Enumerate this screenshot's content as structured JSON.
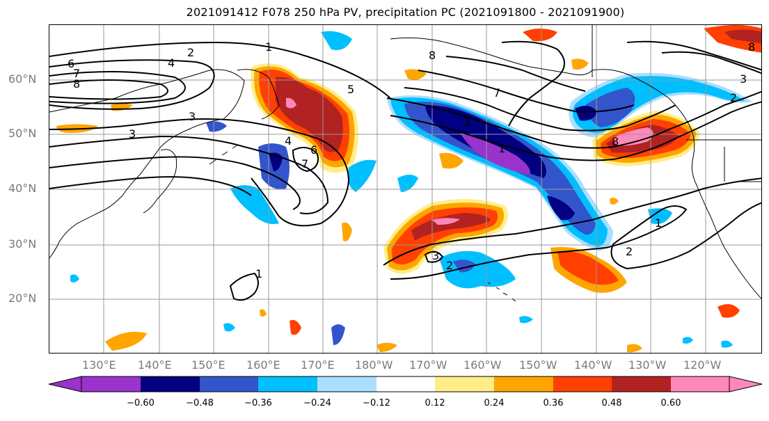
{
  "title": "2021091412 F078 250 hPa PV, precipitation PC (2021091800 - 2021091900)",
  "lat_labels": [
    "60°N",
    "50°N",
    "40°N",
    "30°N",
    "20°N"
  ],
  "lon_labels": [
    "130°E",
    "140°E",
    "150°E",
    "160°E",
    "170°E",
    "180°W",
    "170°W",
    "160°W",
    "150°W",
    "140°W",
    "130°W",
    "120°W"
  ],
  "contour_labels": [
    "2",
    "1",
    "6",
    "7",
    "8",
    "4",
    "3",
    "3",
    "5",
    "7",
    "8",
    "4",
    "6",
    "3",
    "1",
    "2",
    "3",
    "2",
    "1",
    "2",
    "8",
    "8",
    "3",
    "1",
    "7"
  ],
  "colorbar": {
    "tick_labels": [
      "−0.60",
      "−0.48",
      "−0.36",
      "−0.24",
      "−0.12",
      "0.12",
      "0.24",
      "0.36",
      "0.48",
      "0.60"
    ],
    "colors": [
      "#9933cc",
      "#000080",
      "#3355cc",
      "#00bfff",
      "#aadfff",
      "#ffffff",
      "#ffee88",
      "#ffa500",
      "#ff4000",
      "#b22222",
      "#ff88bb"
    ]
  }
}
